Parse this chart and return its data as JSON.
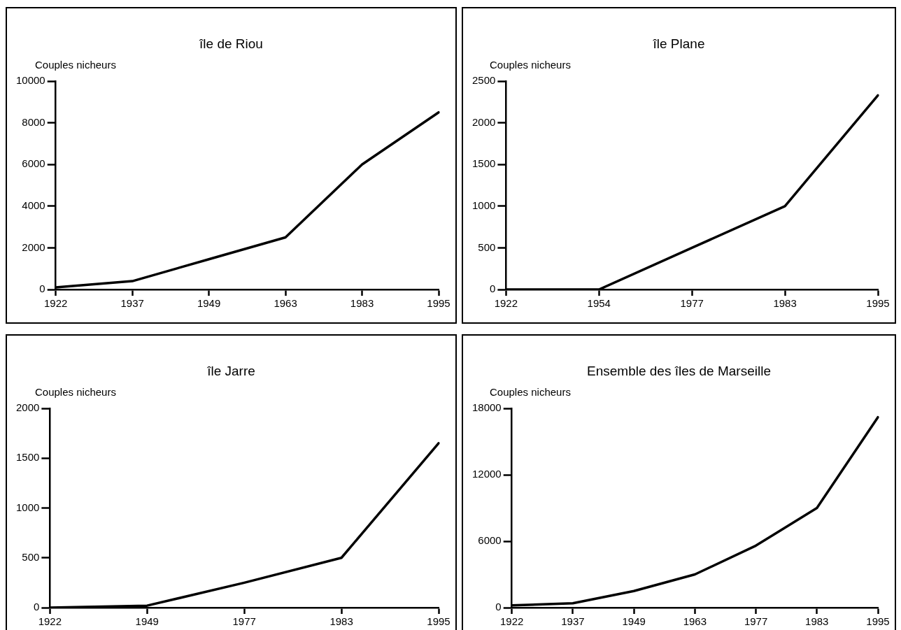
{
  "chart_data": [
    {
      "type": "line",
      "title": "île de Riou",
      "ylabel": "Couples nicheurs",
      "categories": [
        "1922",
        "1937",
        "1949",
        "1963",
        "1983",
        "1995"
      ],
      "series": [
        {
          "color": "#000000",
          "values": [
            100,
            400,
            1450,
            2500,
            6000,
            8500
          ]
        }
      ],
      "ylim": [
        0,
        10000
      ],
      "yticks": [
        0,
        2000,
        4000,
        6000,
        8000,
        10000
      ],
      "grid": false,
      "legend": false,
      "marker": "none",
      "line_style": "solid"
    },
    {
      "type": "line",
      "title": "île Plane",
      "ylabel": "Couples nicheurs",
      "categories": [
        "1922",
        "1954",
        "1977",
        "1983",
        "1995"
      ],
      "series": [
        {
          "color": "#000000",
          "values": [
            0,
            0,
            500,
            1000,
            2330
          ]
        }
      ],
      "ylim": [
        0,
        2500
      ],
      "yticks": [
        0,
        500,
        1000,
        1500,
        2000,
        2500
      ],
      "grid": false,
      "legend": false,
      "marker": "none",
      "line_style": "solid"
    },
    {
      "type": "line",
      "title": "île Jarre",
      "ylabel": "Couples nicheurs",
      "categories": [
        "1922",
        "1949",
        "1977",
        "1983",
        "1995"
      ],
      "series": [
        {
          "color": "#000000",
          "values": [
            0,
            20,
            250,
            500,
            1650
          ]
        }
      ],
      "ylim": [
        0,
        2000
      ],
      "yticks": [
        0,
        500,
        1000,
        1500,
        2000
      ],
      "grid": false,
      "legend": false,
      "marker": "none",
      "line_style": "solid"
    },
    {
      "type": "line",
      "title": "Ensemble des îles de Marseille",
      "ylabel": "Couples nicheurs",
      "categories": [
        "1922",
        "1937",
        "1949",
        "1963",
        "1977",
        "1983",
        "1995"
      ],
      "series": [
        {
          "color": "#000000",
          "values": [
            200,
            400,
            1500,
            3000,
            5600,
            9000,
            17200
          ]
        }
      ],
      "ylim": [
        0,
        18000
      ],
      "yticks": [
        0,
        6000,
        12000,
        18000
      ],
      "grid": false,
      "legend": false,
      "marker": "none",
      "line_style": "solid"
    }
  ]
}
